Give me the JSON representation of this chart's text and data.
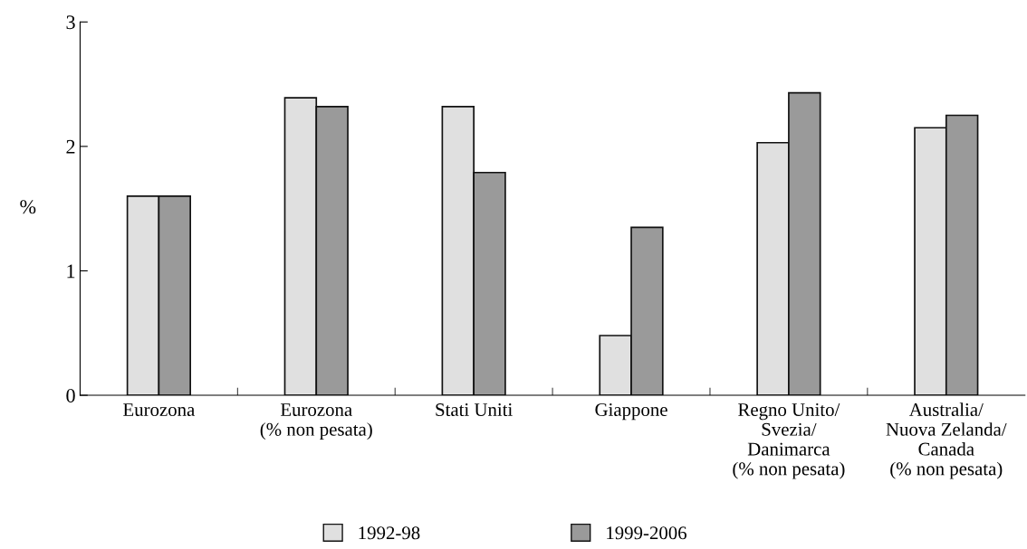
{
  "chart_data": {
    "type": "bar",
    "ylabel": "%",
    "categories": [
      "Eurozona",
      "Eurozona\n(% non pesata)",
      "Stati Uniti",
      "Giappone",
      "Regno Unito/\nSvezia/\nDanimarca\n(% non pesata)",
      "Australia/\nNuova Zelanda/\nCanada\n(% non pesata)"
    ],
    "series": [
      {
        "name": "1992-98",
        "color": "#e0e0e0",
        "values": [
          1.6,
          2.39,
          2.32,
          0.48,
          2.03,
          2.15
        ]
      },
      {
        "name": "1999-2006",
        "color": "#9a9a9a",
        "values": [
          1.6,
          2.32,
          1.79,
          1.35,
          2.43,
          2.25
        ]
      }
    ],
    "ylim": [
      0,
      3
    ],
    "yticks": [
      0,
      1,
      2,
      3
    ],
    "grid": false,
    "legend": "bottom"
  }
}
